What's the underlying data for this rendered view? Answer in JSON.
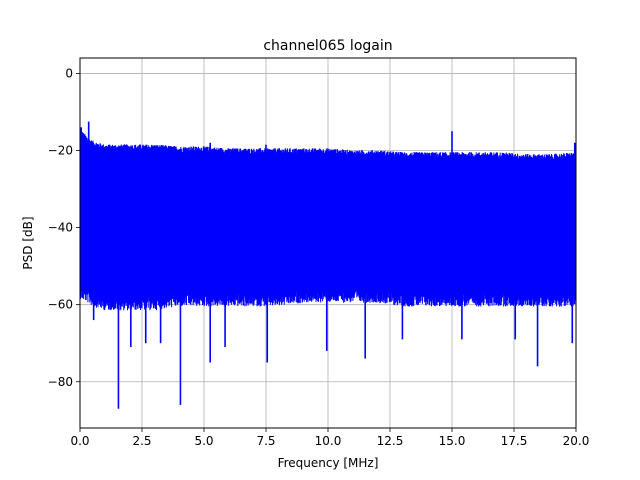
{
  "chart_data": {
    "type": "line",
    "title": "channel065 logain",
    "xlabel": "Frequency [MHz]",
    "ylabel": "PSD [dB]",
    "xlim": [
      0,
      20
    ],
    "ylim": [
      -92,
      4
    ],
    "grid": true,
    "line_color": "#0000ff",
    "x_ticks": [
      0.0,
      2.5,
      5.0,
      7.5,
      10.0,
      12.5,
      15.0,
      17.5,
      20.0
    ],
    "x_tick_labels": [
      "0.0",
      "2.5",
      "5.0",
      "7.5",
      "10.0",
      "12.5",
      "15.0",
      "17.5",
      "20.0"
    ],
    "y_ticks": [
      0,
      -20,
      -40,
      -60,
      -80
    ],
    "y_tick_labels": [
      "0",
      "−20",
      "−40",
      "−60",
      "−80"
    ],
    "series": [
      {
        "envelope": {
          "x": [
            0.0,
            0.3,
            0.5,
            1.0,
            2.0,
            3.0,
            4.0,
            5.0,
            6.0,
            7.0,
            8.0,
            9.0,
            10.0,
            11.0,
            12.0,
            13.0,
            14.0,
            15.0,
            16.0,
            17.0,
            18.0,
            19.0,
            20.0
          ],
          "upper": [
            -16,
            -18,
            -19,
            -20,
            -20,
            -20,
            -20.5,
            -20.5,
            -21,
            -21,
            -21,
            -21,
            -21,
            -21.5,
            -21.5,
            -22,
            -22,
            -22,
            -22,
            -22,
            -22.5,
            -22.5,
            -22
          ],
          "lower": [
            -55,
            -56,
            -57,
            -58,
            -58,
            -58,
            -57,
            -57,
            -57,
            -57,
            -57,
            -56,
            -56,
            -56,
            -56,
            -57,
            -57,
            -57,
            -57,
            -57,
            -57,
            -57,
            -57
          ]
        },
        "peaks": [
          {
            "x": 0.05,
            "y": -14
          },
          {
            "x": 0.35,
            "y": -12.5
          },
          {
            "x": 5.25,
            "y": -18
          },
          {
            "x": 7.5,
            "y": -18.5
          },
          {
            "x": 15.0,
            "y": -15
          },
          {
            "x": 19.95,
            "y": -18
          }
        ],
        "dips": [
          {
            "x": 0.55,
            "y": -64
          },
          {
            "x": 1.55,
            "y": -87
          },
          {
            "x": 2.05,
            "y": -71
          },
          {
            "x": 2.65,
            "y": -70
          },
          {
            "x": 3.25,
            "y": -70
          },
          {
            "x": 4.05,
            "y": -86
          },
          {
            "x": 5.25,
            "y": -75
          },
          {
            "x": 5.85,
            "y": -71
          },
          {
            "x": 7.55,
            "y": -75
          },
          {
            "x": 9.95,
            "y": -72
          },
          {
            "x": 11.5,
            "y": -74
          },
          {
            "x": 13.0,
            "y": -69
          },
          {
            "x": 15.4,
            "y": -69
          },
          {
            "x": 17.55,
            "y": -69
          },
          {
            "x": 18.45,
            "y": -76
          },
          {
            "x": 19.85,
            "y": -70
          }
        ]
      }
    ]
  }
}
